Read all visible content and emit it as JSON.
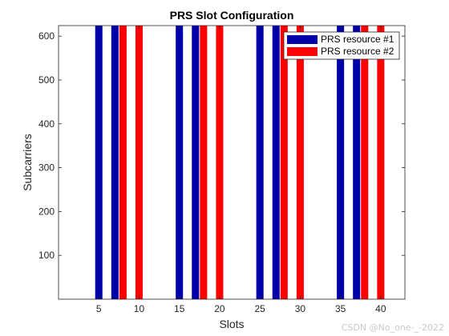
{
  "chart_data": {
    "type": "bar",
    "title": "PRS Slot Configuration",
    "xlabel": "Slots",
    "ylabel": "Subcarriers",
    "xlim": [
      0,
      43
    ],
    "ylim": [
      0,
      624
    ],
    "xticks": [
      5,
      10,
      15,
      20,
      25,
      30,
      35,
      40
    ],
    "yticks": [
      100,
      200,
      300,
      400,
      500,
      600
    ],
    "bar_height": 624,
    "series": [
      {
        "name": "PRS resource #1",
        "color": "#0000a8",
        "slots": [
          5,
          7,
          15,
          17,
          25,
          27,
          35,
          37
        ]
      },
      {
        "name": "PRS resource #2",
        "color": "#ff0000",
        "slots": [
          8,
          10,
          18,
          20,
          28,
          30,
          38,
          40
        ]
      }
    ],
    "legend_position": "top-right",
    "grid": false
  },
  "watermark": "CSDN @No_one-_-2022"
}
